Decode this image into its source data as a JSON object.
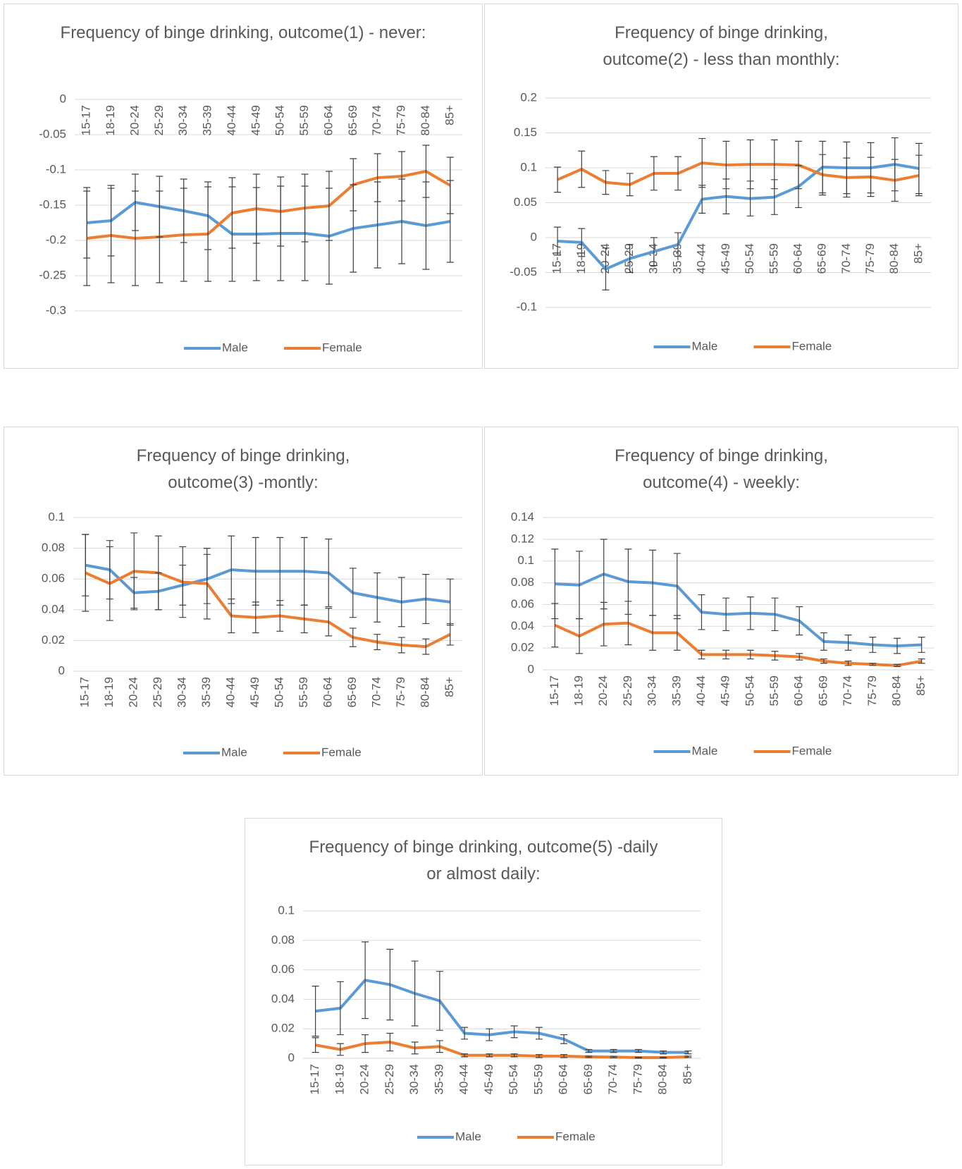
{
  "chart_data": [
    {
      "type": "line",
      "title": "Frequency of binge drinking, outcome(1) - never:",
      "categories": [
        "15-17",
        "18-19",
        "20-24",
        "25-29",
        "30-34",
        "35-39",
        "40-44",
        "45-49",
        "50-54",
        "55-59",
        "60-64",
        "65-69",
        "70-74",
        "75-79",
        "80-84",
        "85+"
      ],
      "ylim": [
        -0.3,
        0
      ],
      "yticks": [
        -0.3,
        -0.25,
        -0.2,
        -0.15,
        -0.1,
        -0.05,
        0
      ],
      "grid": true,
      "series": [
        {
          "name": "Male",
          "color": "#5b9bd5",
          "values": [
            -0.175,
            -0.172,
            -0.146,
            -0.152,
            -0.158,
            -0.165,
            -0.191,
            -0.191,
            -0.19,
            -0.19,
            -0.194,
            -0.183,
            -0.178,
            -0.173,
            -0.179,
            -0.173
          ],
          "errors": [
            0.05,
            0.05,
            0.04,
            0.043,
            0.045,
            0.048,
            0.067,
            0.066,
            0.067,
            0.067,
            0.068,
            0.062,
            0.061,
            0.06,
            0.062,
            0.058
          ]
        },
        {
          "name": "Female",
          "color": "#ed7d31",
          "values": [
            -0.197,
            -0.193,
            -0.197,
            -0.195,
            -0.192,
            -0.191,
            -0.161,
            -0.155,
            -0.159,
            -0.154,
            -0.151,
            -0.121,
            -0.111,
            -0.109,
            -0.102,
            -0.122
          ],
          "errors": [
            0.067,
            0.067,
            0.067,
            0.065,
            0.066,
            0.067,
            0.05,
            0.049,
            0.049,
            0.048,
            0.049,
            0.037,
            0.034,
            0.035,
            0.037,
            0.04
          ]
        }
      ]
    },
    {
      "type": "line",
      "title": "Frequency of binge drinking, outcome(2) - less than monthly:",
      "categories": [
        "15-17",
        "18-19",
        "20-24",
        "25-29",
        "30-34",
        "35-39",
        "40-44",
        "45-49",
        "50-54",
        "55-59",
        "60-64",
        "65-69",
        "70-74",
        "75-79",
        "80-84",
        "85+"
      ],
      "ylim": [
        -0.1,
        0.2
      ],
      "yticks": [
        -0.1,
        -0.05,
        0,
        0.05,
        0.1,
        0.15,
        0.2
      ],
      "grid": true,
      "series": [
        {
          "name": "Male",
          "color": "#5b9bd5",
          "values": [
            -0.005,
            -0.007,
            -0.045,
            -0.03,
            -0.02,
            -0.01,
            0.055,
            0.059,
            0.056,
            0.058,
            0.073,
            0.101,
            0.1,
            0.1,
            0.105,
            0.099
          ],
          "errors": [
            0.02,
            0.02,
            0.03,
            0.02,
            0.02,
            0.017,
            0.02,
            0.025,
            0.025,
            0.025,
            0.03,
            0.037,
            0.037,
            0.036,
            0.038,
            0.036
          ]
        },
        {
          "name": "Female",
          "color": "#ed7d31",
          "values": [
            0.083,
            0.098,
            0.079,
            0.076,
            0.092,
            0.092,
            0.107,
            0.104,
            0.105,
            0.105,
            0.104,
            0.09,
            0.086,
            0.087,
            0.082,
            0.089
          ],
          "errors": [
            0.018,
            0.026,
            0.017,
            0.016,
            0.024,
            0.024,
            0.035,
            0.034,
            0.035,
            0.035,
            0.034,
            0.029,
            0.028,
            0.028,
            0.03,
            0.029
          ]
        }
      ]
    },
    {
      "type": "line",
      "title": "Frequency of binge drinking, outcome(3) -montly:",
      "categories": [
        "15-17",
        "18-19",
        "20-24",
        "25-29",
        "30-34",
        "35-39",
        "40-44",
        "45-49",
        "50-54",
        "55-59",
        "60-64",
        "65-69",
        "70-74",
        "75-79",
        "80-84",
        "85+"
      ],
      "ylim": [
        0,
        0.1
      ],
      "yticks": [
        0,
        0.02,
        0.04,
        0.06,
        0.08,
        0.1
      ],
      "grid": true,
      "series": [
        {
          "name": "Male",
          "color": "#5b9bd5",
          "values": [
            0.069,
            0.066,
            0.051,
            0.052,
            0.056,
            0.06,
            0.066,
            0.065,
            0.065,
            0.065,
            0.064,
            0.051,
            0.048,
            0.045,
            0.047,
            0.045
          ],
          "errors": [
            0.02,
            0.019,
            0.01,
            0.012,
            0.013,
            0.016,
            0.022,
            0.022,
            0.022,
            0.022,
            0.022,
            0.016,
            0.016,
            0.016,
            0.016,
            0.015
          ]
        },
        {
          "name": "Female",
          "color": "#ed7d31",
          "values": [
            0.064,
            0.057,
            0.065,
            0.064,
            0.058,
            0.057,
            0.036,
            0.035,
            0.036,
            0.034,
            0.032,
            0.022,
            0.019,
            0.017,
            0.016,
            0.024
          ],
          "errors": [
            0.025,
            0.024,
            0.025,
            0.024,
            0.023,
            0.023,
            0.011,
            0.01,
            0.01,
            0.009,
            0.009,
            0.006,
            0.005,
            0.005,
            0.005,
            0.007
          ]
        }
      ]
    },
    {
      "type": "line",
      "title": "Frequency of binge drinking, outcome(4) - weekly:",
      "categories": [
        "15-17",
        "18-19",
        "20-24",
        "25-29",
        "30-34",
        "35-39",
        "40-44",
        "45-49",
        "50-54",
        "55-59",
        "60-64",
        "65-69",
        "70-74",
        "75-79",
        "80-84",
        "85+"
      ],
      "ylim": [
        0,
        0.14
      ],
      "yticks": [
        0,
        0.02,
        0.04,
        0.06,
        0.08,
        0.1,
        0.12,
        0.14
      ],
      "grid": true,
      "series": [
        {
          "name": "Male",
          "color": "#5b9bd5",
          "values": [
            0.079,
            0.078,
            0.088,
            0.081,
            0.08,
            0.077,
            0.053,
            0.051,
            0.052,
            0.051,
            0.045,
            0.026,
            0.025,
            0.023,
            0.022,
            0.023
          ],
          "errors": [
            0.032,
            0.031,
            0.032,
            0.03,
            0.03,
            0.03,
            0.016,
            0.015,
            0.015,
            0.015,
            0.013,
            0.008,
            0.007,
            0.007,
            0.007,
            0.007
          ]
        },
        {
          "name": "Female",
          "color": "#ed7d31",
          "values": [
            0.041,
            0.031,
            0.042,
            0.043,
            0.034,
            0.034,
            0.014,
            0.014,
            0.014,
            0.013,
            0.012,
            0.008,
            0.006,
            0.005,
            0.004,
            0.008
          ],
          "errors": [
            0.02,
            0.016,
            0.02,
            0.02,
            0.016,
            0.016,
            0.004,
            0.004,
            0.004,
            0.004,
            0.003,
            0.002,
            0.002,
            0.001,
            0.001,
            0.002
          ]
        }
      ]
    },
    {
      "type": "line",
      "title": "Frequency of binge drinking, outcome(5) -daily or almost daily:",
      "categories": [
        "15-17",
        "18-19",
        "20-24",
        "25-29",
        "30-34",
        "35-39",
        "40-44",
        "45-49",
        "50-54",
        "55-59",
        "60-64",
        "65-69",
        "70-74",
        "75-79",
        "80-84",
        "85+"
      ],
      "ylim": [
        0,
        0.1
      ],
      "yticks": [
        0,
        0.02,
        0.04,
        0.06,
        0.08,
        0.1
      ],
      "grid": true,
      "series": [
        {
          "name": "Male",
          "color": "#5b9bd5",
          "values": [
            0.032,
            0.034,
            0.053,
            0.05,
            0.044,
            0.039,
            0.017,
            0.016,
            0.018,
            0.017,
            0.013,
            0.005,
            0.005,
            0.005,
            0.004,
            0.004
          ],
          "errors": [
            0.017,
            0.018,
            0.026,
            0.024,
            0.022,
            0.02,
            0.004,
            0.004,
            0.004,
            0.004,
            0.003,
            0.001,
            0.001,
            0.001,
            0.001,
            0.001
          ]
        },
        {
          "name": "Female",
          "color": "#ed7d31",
          "values": [
            0.009,
            0.006,
            0.01,
            0.011,
            0.007,
            0.008,
            0.002,
            0.002,
            0.002,
            0.0015,
            0.0015,
            0.001,
            0.0008,
            0.0005,
            0.0005,
            0.001
          ],
          "errors": [
            0.005,
            0.004,
            0.006,
            0.006,
            0.004,
            0.004,
            0.001,
            0.001,
            0.001,
            0.001,
            0.001,
            0.0005,
            0.0005,
            0.0003,
            0.0003,
            0.0005
          ]
        }
      ]
    }
  ]
}
